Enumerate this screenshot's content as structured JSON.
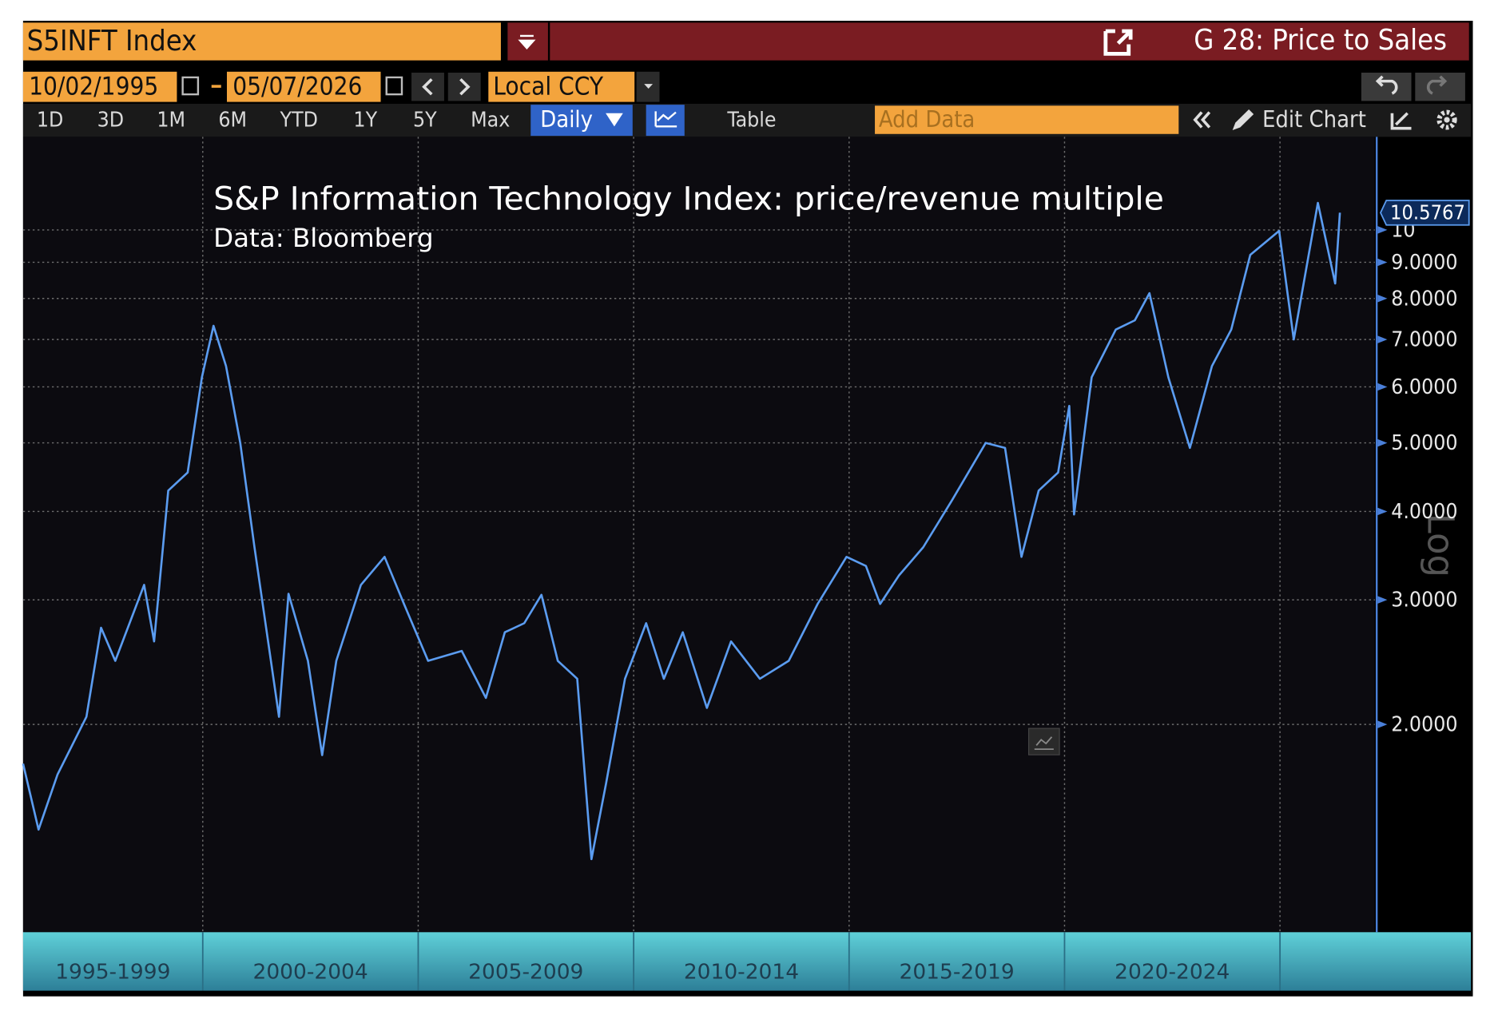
{
  "ui": {
    "ticker": "S5INFT Index",
    "panel_title": "G 28: Price to Sales",
    "start_date": "10/02/1995",
    "end_date": "05/07/2026",
    "currency": "Local CCY",
    "range_buttons": [
      "1D",
      "3D",
      "1M",
      "6M",
      "YTD",
      "1Y",
      "5Y",
      "Max"
    ],
    "frequency": "Daily",
    "table_button": "Table",
    "add_data_placeholder": "Add Data",
    "edit_chart": "Edit Chart"
  },
  "chart_data": {
    "type": "line",
    "title": "S&P Information Technology Index: price/revenue multiple",
    "subtitle": "Data: Bloomberg",
    "y_axis_label": "Log",
    "log_scale": true,
    "grid": true,
    "xlim": [
      1995.83,
      2027.2
    ],
    "xticks": [
      2000,
      2005,
      2010,
      2015,
      2020,
      2025
    ],
    "x_band_labels": [
      "1995-1999",
      "2000-2004",
      "2005-2009",
      "2010-2014",
      "2015-2019",
      "2020-2024"
    ],
    "ylim": [
      1.017,
      13.54
    ],
    "yticks": [
      {
        "value": 2,
        "label": "2.0000"
      },
      {
        "value": 3,
        "label": "3.0000"
      },
      {
        "value": 4,
        "label": "4.0000"
      },
      {
        "value": 5,
        "label": "5.0000"
      },
      {
        "value": 6,
        "label": "6.0000"
      },
      {
        "value": 7,
        "label": "7.0000"
      },
      {
        "value": 8,
        "label": "8.0000"
      },
      {
        "value": 9,
        "label": "9.0000"
      },
      10
    ],
    "series": [
      {
        "name": "S5INFT Index",
        "color": "#5b9cf0",
        "x": [
          1995.83,
          1996.19,
          1996.63,
          1997.3,
          1997.64,
          1997.97,
          1998.64,
          1998.87,
          1999.2,
          1999.65,
          1999.98,
          2000.25,
          2000.54,
          2000.87,
          2001.2,
          2001.77,
          2001.99,
          2002.44,
          2002.77,
          2003.1,
          2003.67,
          2004.22,
          2004.67,
          2005.23,
          2006.01,
          2006.57,
          2007.01,
          2007.46,
          2007.86,
          2008.24,
          2008.69,
          2009.02,
          2009.36,
          2009.8,
          2010.29,
          2010.7,
          2011.14,
          2011.7,
          2012.26,
          2012.93,
          2013.6,
          2014.27,
          2014.94,
          2015.39,
          2015.72,
          2016.16,
          2016.72,
          2017.39,
          2018.17,
          2018.62,
          2019.0,
          2019.4,
          2019.85,
          2020.11,
          2020.22,
          2020.63,
          2021.19,
          2021.63,
          2021.97,
          2022.41,
          2022.91,
          2023.42,
          2023.87,
          2024.31,
          2024.98,
          2025.32,
          2025.88,
          2026.28,
          2026.39
        ],
        "values": [
          1.76,
          1.42,
          1.7,
          2.05,
          2.74,
          2.46,
          3.15,
          2.62,
          4.28,
          4.54,
          6.19,
          7.32,
          6.42,
          5.0,
          3.56,
          2.05,
          3.06,
          2.46,
          1.81,
          2.46,
          3.15,
          3.45,
          2.96,
          2.46,
          2.54,
          2.18,
          2.7,
          2.78,
          3.05,
          2.46,
          2.32,
          1.29,
          1.65,
          2.32,
          2.78,
          2.32,
          2.7,
          2.11,
          2.62,
          2.32,
          2.46,
          2.96,
          3.45,
          3.35,
          2.96,
          3.25,
          3.56,
          4.15,
          5.0,
          4.92,
          3.45,
          4.28,
          4.54,
          5.64,
          3.96,
          6.19,
          7.23,
          7.45,
          8.14,
          6.19,
          4.92,
          6.42,
          7.23,
          9.22,
          9.97,
          7.0,
          10.92,
          8.4,
          10.5767
        ]
      }
    ]
  }
}
